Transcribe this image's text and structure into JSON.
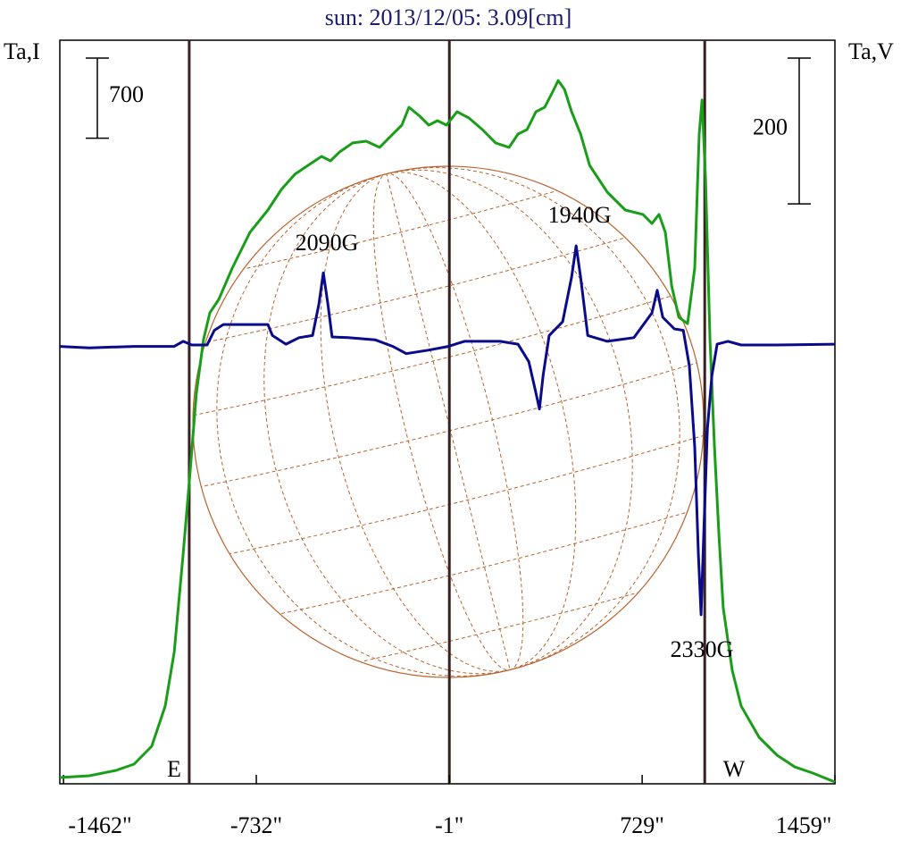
{
  "chart_data": {
    "type": "line",
    "title": "sun: 2013/12/05: 3.09[cm]",
    "ylabel": "Ta,I",
    "y2label": "Ta,V",
    "xlim": [
      -1476,
      1459
    ],
    "xticks": [
      {
        "value": -1462,
        "label": "-1462\""
      },
      {
        "value": -732,
        "label": "-732\""
      },
      {
        "value": -1,
        "label": "-1\""
      },
      {
        "value": 729,
        "label": "729\""
      },
      {
        "value": 1459,
        "label": "1459\""
      }
    ],
    "ylim": [
      0,
      6500
    ],
    "y2lim": [
      -600,
      420
    ],
    "vlines": [
      -986,
      -1,
      966
    ],
    "scale_bars": [
      {
        "value": 700,
        "axis": "y"
      },
      {
        "value": 200,
        "axis": "y2"
      }
    ],
    "annotations": [
      "2090G",
      "1940G",
      "2330G",
      "E",
      "W"
    ],
    "series": [
      {
        "color": "#1a9e1a",
        "axis": "y",
        "x": [
          -1476,
          -1364,
          -1263,
          -1195,
          -1128,
          -1077,
          -1043,
          -1009,
          -986,
          -959,
          -932,
          -908,
          -874,
          -823,
          -756,
          -688,
          -637,
          -586,
          -536,
          -485,
          -451,
          -417,
          -367,
          -316,
          -265,
          -215,
          -181,
          -154,
          -113,
          -79,
          -46,
          -12,
          28,
          73,
          124,
          174,
          225,
          259,
          293,
          327,
          360,
          395,
          411,
          435,
          462,
          496,
          530,
          597,
          665,
          732,
          766,
          793,
          817,
          841,
          868,
          901,
          928,
          945,
          956,
          969,
          986,
          1003,
          1020,
          1036,
          1070,
          1104,
          1172,
          1240,
          1307,
          1375,
          1459
        ],
        "values": [
          55,
          70,
          117,
          172,
          328,
          680,
          1150,
          2008,
          2633,
          3414,
          3883,
          4117,
          4234,
          4508,
          4820,
          5016,
          5195,
          5328,
          5406,
          5484,
          5445,
          5523,
          5602,
          5617,
          5563,
          5680,
          5758,
          5914,
          5836,
          5758,
          5797,
          5758,
          5875,
          5820,
          5719,
          5602,
          5563,
          5680,
          5719,
          5875,
          5914,
          6070,
          6148,
          6070,
          5875,
          5680,
          5406,
          5172,
          5016,
          4977,
          4898,
          4977,
          4820,
          4352,
          4078,
          4023,
          4508,
          5680,
          5977,
          5289,
          3883,
          2945,
          2164,
          1539,
          992,
          680,
          406,
          250,
          148,
          94,
          16
        ]
      },
      {
        "color": "#0a0a8c",
        "axis": "y2",
        "x": [
          -1476,
          -1364,
          -1195,
          -1043,
          -1009,
          -976,
          -918,
          -891,
          -857,
          -688,
          -671,
          -620,
          -570,
          -519,
          -495,
          -478,
          -461,
          -445,
          -384,
          -282,
          -215,
          -164,
          -79,
          -5,
          56,
          191,
          259,
          300,
          327,
          340,
          354,
          377,
          428,
          462,
          479,
          496,
          523,
          597,
          698,
          766,
          786,
          807,
          851,
          885,
          908,
          928,
          942,
          952,
          962,
          976,
          993,
          1013,
          1054,
          1104,
          1240,
          1459
        ],
        "values": [
          0,
          -2,
          0,
          0,
          7,
          2,
          2,
          22,
          30,
          30,
          15,
          3,
          12,
          15,
          58,
          101,
          58,
          13,
          12,
          9,
          0,
          -10,
          -5,
          0,
          7,
          7,
          3,
          -21,
          -64,
          -86,
          -40,
          15,
          34,
          95,
          138,
          95,
          15,
          7,
          12,
          46,
          77,
          40,
          24,
          22,
          -27,
          -138,
          -285,
          -368,
          -261,
          -113,
          -40,
          3,
          7,
          2,
          2,
          3
        ]
      }
    ]
  }
}
